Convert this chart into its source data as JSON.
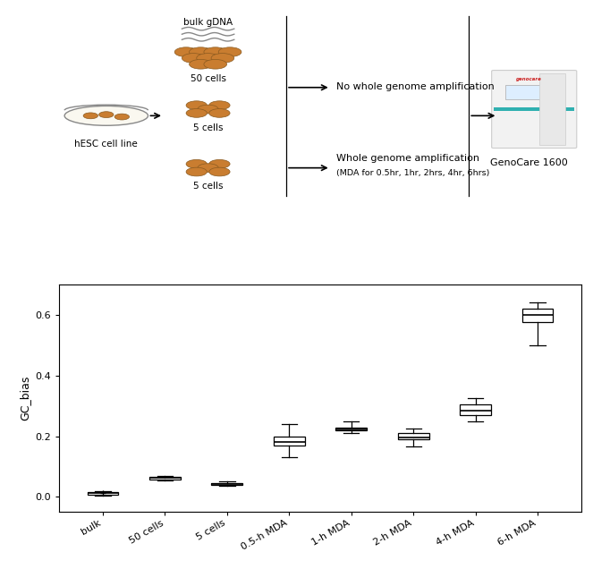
{
  "categories": [
    "bulk",
    "50 cells",
    "5 cells",
    "0.5-h MDA",
    "1-h MDA",
    "2-h MDA",
    "4-h MDA",
    "6-h MDA"
  ],
  "boxplot_data": {
    "bulk": {
      "whislo": 0.005,
      "q1": 0.008,
      "med": 0.012,
      "q3": 0.015,
      "whishi": 0.02
    },
    "50 cells": {
      "whislo": 0.055,
      "q1": 0.058,
      "med": 0.062,
      "q3": 0.065,
      "whishi": 0.068
    },
    "5 cells": {
      "whislo": 0.038,
      "q1": 0.04,
      "med": 0.043,
      "q3": 0.046,
      "whishi": 0.05
    },
    "0.5-h MDA": {
      "whislo": 0.13,
      "q1": 0.17,
      "med": 0.18,
      "q3": 0.2,
      "whishi": 0.24
    },
    "1-h MDA": {
      "whislo": 0.21,
      "q1": 0.218,
      "med": 0.223,
      "q3": 0.228,
      "whishi": 0.25
    },
    "2-h MDA": {
      "whislo": 0.165,
      "q1": 0.19,
      "med": 0.197,
      "q3": 0.21,
      "whishi": 0.225
    },
    "4-h MDA": {
      "whislo": 0.25,
      "q1": 0.27,
      "med": 0.285,
      "q3": 0.305,
      "whishi": 0.325
    },
    "6-h MDA": {
      "whislo": 0.5,
      "q1": 0.575,
      "med": 0.6,
      "q3": 0.62,
      "whishi": 0.64
    }
  },
  "ylabel": "GC_bias",
  "ylim": [
    -0.05,
    0.7
  ],
  "yticks": [
    0.0,
    0.2,
    0.4,
    0.6
  ],
  "diagram_texts": {
    "bulk_gdna": "bulk gDNA",
    "50cells": "50 cells",
    "5cells_1": "5 cells",
    "5cells_2": "5 cells",
    "hesc": "hESC cell line",
    "no_amp": "No whole genome amplification",
    "whole_amp": "Whole genome amplification",
    "whole_amp_sub": "(MDA for 0.5hr, 1hr, 2hrs, 4hr, 6hrs)",
    "genocare": "GenoCare 1600"
  }
}
